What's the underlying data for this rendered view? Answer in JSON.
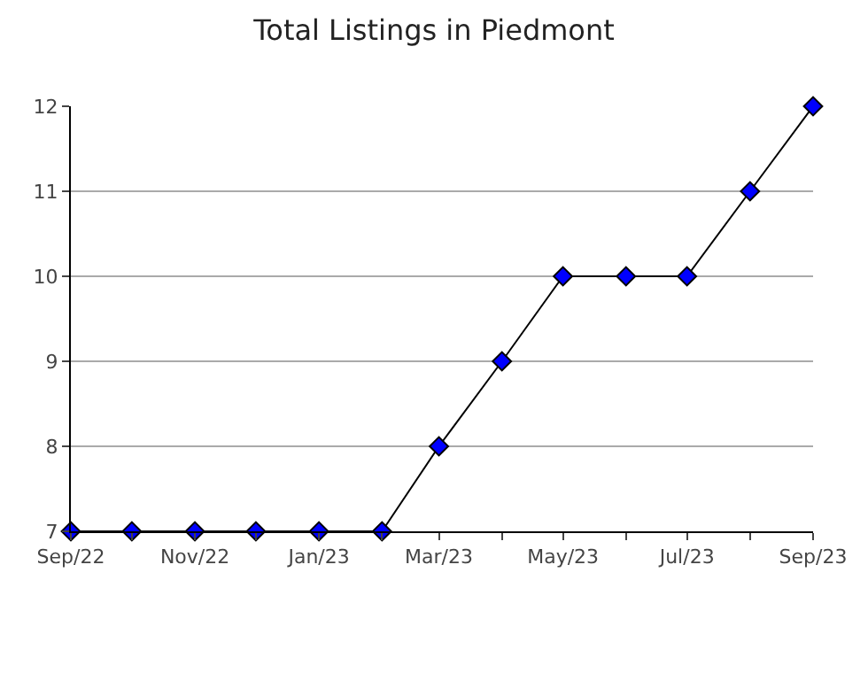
{
  "chart_data": {
    "type": "line",
    "title": "Total Listings in Piedmont",
    "x": [
      "2022-09",
      "2022-10",
      "2022-11",
      "2022-12",
      "2023-01",
      "2023-02",
      "2023-03",
      "2023-04",
      "2023-05",
      "2023-06",
      "2023-07",
      "2023-08",
      "2023-09"
    ],
    "series": [
      {
        "color": "#0000ff",
        "values": [
          7,
          7,
          7,
          7,
          7,
          7,
          8,
          9,
          10,
          10,
          10,
          11,
          12
        ]
      }
    ],
    "xlim": [
      "2022-09",
      "2023-09"
    ],
    "xticks": [
      {
        "value": "2022-09",
        "label": "Sep/22"
      },
      {
        "value": "2022-10",
        "label": null
      },
      {
        "value": "2022-11",
        "label": "Nov/22"
      },
      {
        "value": "2022-12",
        "label": null
      },
      {
        "value": "2023-01",
        "label": "Jan/23"
      },
      {
        "value": "2023-02",
        "label": null
      },
      {
        "value": "2023-03",
        "label": "Mar/23"
      },
      {
        "value": "2023-04",
        "label": null
      },
      {
        "value": "2023-05",
        "label": "May/23"
      },
      {
        "value": "2023-06",
        "label": null
      },
      {
        "value": "2023-07",
        "label": "Jul/23"
      },
      {
        "value": "2023-08",
        "label": null
      },
      {
        "value": "2023-09",
        "label": "Sep/23"
      }
    ],
    "ylim": [
      7,
      12
    ],
    "yticks": [
      7,
      8,
      9,
      10,
      11,
      12
    ],
    "grid": "y",
    "marker": "diamond",
    "line_style": "solid"
  }
}
